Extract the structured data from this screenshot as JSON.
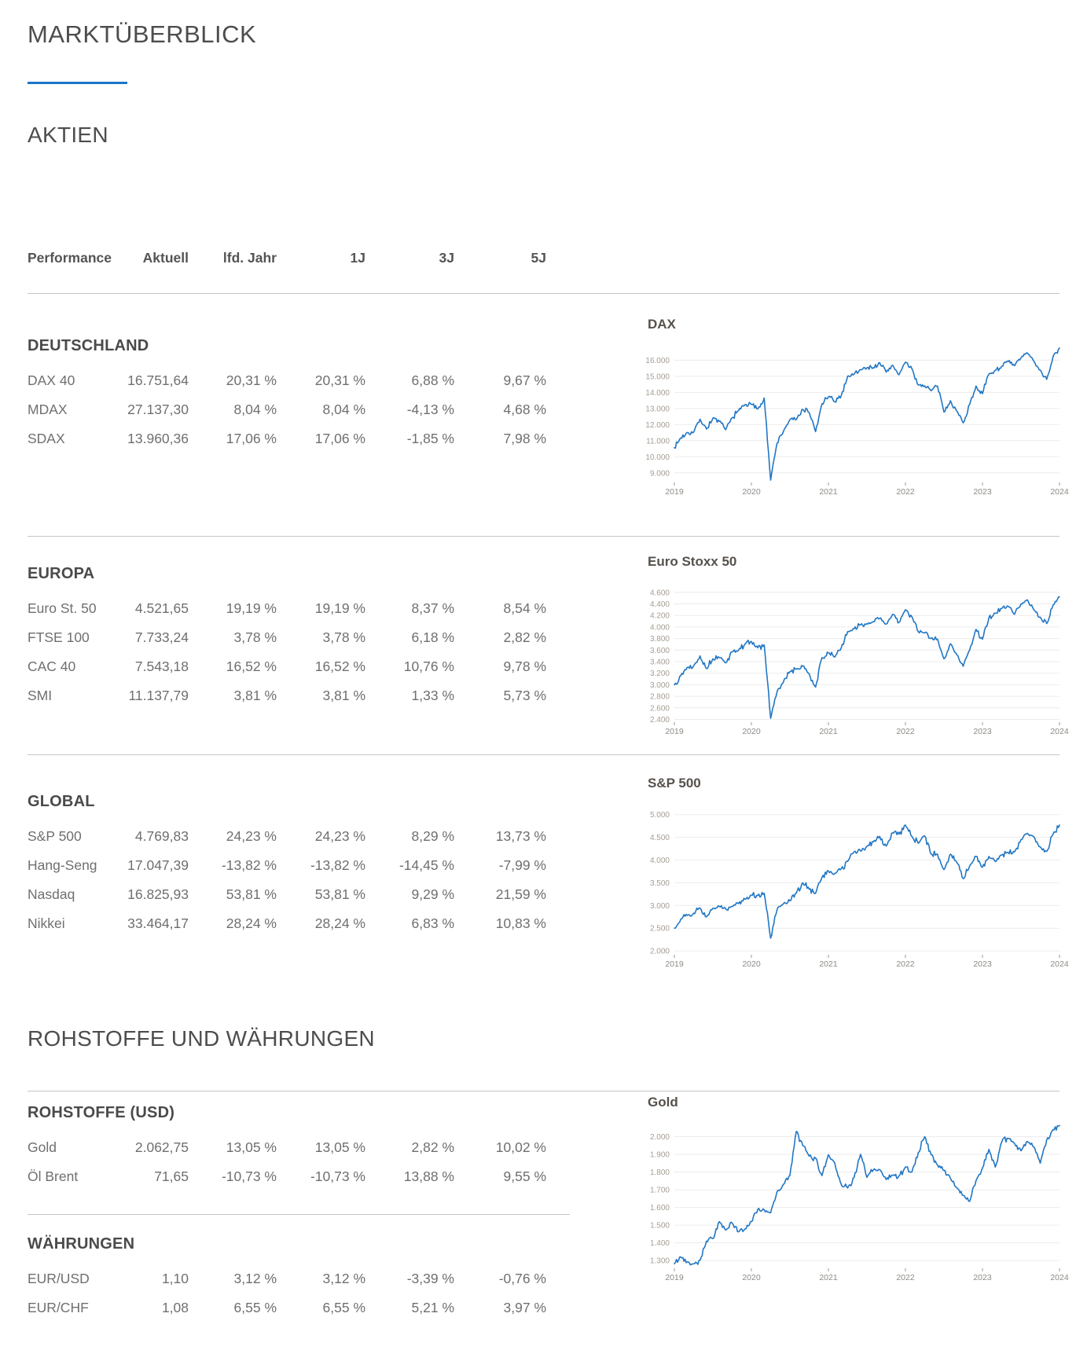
{
  "page": {
    "title": "MARKTÜBERBLICK",
    "section_aktien": "AKTIEN",
    "section_rohstoffe": "ROHSTOFFE UND WÄHRUNGEN"
  },
  "colors": {
    "accent_blue": "#1b76c9",
    "chart_line_blue": "#2176c4",
    "separator_gray": "#c6c6c6",
    "grid_gray": "#ececec",
    "heading_gray": "#4d4d4f",
    "table_text_gray": "#6f6f72"
  },
  "table": {
    "headers": [
      "Performance",
      "Aktuell",
      "lfd. Jahr",
      "1J",
      "3J",
      "5J"
    ],
    "groups": [
      {
        "name": "DEUTSCHLAND",
        "rows": [
          [
            "DAX 40",
            "16.751,64",
            "20,31 %",
            "20,31 %",
            "6,88 %",
            "9,67 %"
          ],
          [
            "MDAX",
            "27.137,30",
            "8,04 %",
            "8,04 %",
            "-4,13 %",
            "4,68 %"
          ],
          [
            "SDAX",
            "13.960,36",
            "17,06 %",
            "17,06 %",
            "-1,85 %",
            "7,98 %"
          ]
        ]
      },
      {
        "name": "EUROPA",
        "rows": [
          [
            "Euro St. 50",
            "4.521,65",
            "19,19 %",
            "19,19 %",
            "8,37 %",
            "8,54 %"
          ],
          [
            "FTSE 100",
            "7.733,24",
            "3,78 %",
            "3,78 %",
            "6,18 %",
            "2,82 %"
          ],
          [
            "CAC 40",
            "7.543,18",
            "16,52 %",
            "16,52 %",
            "10,76 %",
            "9,78 %"
          ],
          [
            "SMI",
            "11.137,79",
            "3,81 %",
            "3,81 %",
            "1,33 %",
            "5,73 %"
          ]
        ]
      },
      {
        "name": "GLOBAL",
        "rows": [
          [
            "S&P 500",
            "4.769,83",
            "24,23 %",
            "24,23 %",
            "8,29 %",
            "13,73 %"
          ],
          [
            "Hang-Seng",
            "17.047,39",
            "-13,82 %",
            "-13,82 %",
            "-14,45 %",
            "-7,99 %"
          ],
          [
            "Nasdaq",
            "16.825,93",
            "53,81 %",
            "53,81 %",
            "9,29 %",
            "21,59 %"
          ],
          [
            "Nikkei",
            "33.464,17",
            "28,24 %",
            "28,24 %",
            "6,83 %",
            "10,83 %"
          ]
        ]
      },
      {
        "name": "ROHSTOFFE (USD)",
        "rows": [
          [
            "Gold",
            "2.062,75",
            "13,05 %",
            "13,05 %",
            "2,82 %",
            "10,02 %"
          ],
          [
            "Öl Brent",
            "71,65",
            "-10,73 %",
            "-10,73 %",
            "13,88 %",
            "9,55 %"
          ]
        ]
      },
      {
        "name": "WÄHRUNGEN",
        "rows": [
          [
            "EUR/USD",
            "1,10",
            "3,12 %",
            "3,12 %",
            "-3,39 %",
            "-0,76 %"
          ],
          [
            "EUR/CHF",
            "1,08",
            "6,55 %",
            "6,55 %",
            "5,21 %",
            "3,97 %"
          ]
        ]
      }
    ]
  },
  "chart_data": [
    {
      "type": "line",
      "title": "DAX",
      "name": "dax-chart",
      "xlabel": "",
      "ylabel": "",
      "grid": true,
      "legend": "none",
      "x_range": [
        2019,
        2024
      ],
      "x_ticks": [
        "2019",
        "2020",
        "2021",
        "2022",
        "2023",
        "2024"
      ],
      "y_range": [
        8500,
        16900
      ],
      "y_ticks": [
        {
          "v": 9000,
          "label": "9.000"
        },
        {
          "v": 10000,
          "label": "10.000"
        },
        {
          "v": 11000,
          "label": "11.000"
        },
        {
          "v": 12000,
          "label": "12.000"
        },
        {
          "v": 13000,
          "label": "13.000"
        },
        {
          "v": 14000,
          "label": "14.000"
        },
        {
          "v": 15000,
          "label": "15.000"
        },
        {
          "v": 16000,
          "label": "16.000"
        }
      ],
      "x_start": 2019,
      "x_step": 0.0833333,
      "line_color": "#2176c4",
      "values": [
        10560,
        11170,
        11510,
        11530,
        12340,
        11730,
        12400,
        12190,
        11680,
        12430,
        12870,
        13240,
        13250,
        12980,
        13650,
        8550,
        10860,
        11590,
        12310,
        12310,
        12950,
        12760,
        11560,
        13290,
        13720,
        13430,
        13790,
        15010,
        15140,
        15420,
        15530,
        15540,
        15840,
        15260,
        15690,
        15100,
        15880,
        15470,
        14460,
        14410,
        14100,
        14390,
        12780,
        13480,
        12840,
        12110,
        13250,
        14400,
        13920,
        15130,
        15370,
        15630,
        15920,
        15660,
        16150,
        16450,
        15950,
        15390,
        14810,
        16220,
        16752
      ]
    },
    {
      "type": "line",
      "title": "Euro Stoxx 50",
      "name": "euro-stoxx-50-chart",
      "xlabel": "",
      "ylabel": "",
      "grid": true,
      "legend": "none",
      "x_range": [
        2019,
        2024
      ],
      "x_ticks": [
        "2019",
        "2020",
        "2021",
        "2022",
        "2023",
        "2024"
      ],
      "y_range": [
        2380,
        4720
      ],
      "y_ticks": [
        {
          "v": 2400,
          "label": "2.400"
        },
        {
          "v": 2600,
          "label": "2.600"
        },
        {
          "v": 2800,
          "label": "2.800"
        },
        {
          "v": 3000,
          "label": "3.000"
        },
        {
          "v": 3200,
          "label": "3.200"
        },
        {
          "v": 3400,
          "label": "3.400"
        },
        {
          "v": 3600,
          "label": "3.600"
        },
        {
          "v": 3800,
          "label": "3.800"
        },
        {
          "v": 4000,
          "label": "4.000"
        },
        {
          "v": 4200,
          "label": "4.200"
        },
        {
          "v": 4400,
          "label": "4.400"
        },
        {
          "v": 4600,
          "label": "4.600"
        }
      ],
      "x_start": 2019,
      "x_step": 0.0833333,
      "line_color": "#2176c4",
      "values": [
        3000,
        3160,
        3300,
        3330,
        3500,
        3280,
        3450,
        3470,
        3380,
        3570,
        3600,
        3700,
        3750,
        3640,
        3690,
        2420,
        2880,
        3050,
        3230,
        3270,
        3320,
        3190,
        2960,
        3470,
        3550,
        3480,
        3640,
        3920,
        3970,
        4040,
        4060,
        4090,
        4150,
        4050,
        4220,
        4080,
        4300,
        4180,
        3920,
        3900,
        3800,
        3790,
        3450,
        3710,
        3520,
        3320,
        3600,
        3960,
        3790,
        4160,
        4240,
        4320,
        4360,
        4220,
        4400,
        4470,
        4300,
        4170,
        4060,
        4380,
        4522
      ]
    },
    {
      "type": "line",
      "title": "S&P 500",
      "name": "sp500-chart",
      "xlabel": "",
      "ylabel": "",
      "grid": true,
      "legend": "none",
      "x_range": [
        2019,
        2024
      ],
      "x_ticks": [
        "2019",
        "2020",
        "2021",
        "2022",
        "2023",
        "2024"
      ],
      "y_range": [
        1950,
        5150
      ],
      "y_ticks": [
        {
          "v": 2000,
          "label": "2.000"
        },
        {
          "v": 2500,
          "label": "2.500"
        },
        {
          "v": 3000,
          "label": "3.000"
        },
        {
          "v": 3500,
          "label": "3.500"
        },
        {
          "v": 4000,
          "label": "4.000"
        },
        {
          "v": 4500,
          "label": "4.500"
        },
        {
          "v": 5000,
          "label": "5.000"
        }
      ],
      "x_start": 2019,
      "x_step": 0.0833333,
      "line_color": "#2176c4",
      "values": [
        2500,
        2700,
        2780,
        2830,
        2940,
        2750,
        2940,
        2980,
        2920,
        2980,
        3040,
        3140,
        3230,
        3220,
        3270,
        2280,
        2910,
        3040,
        3100,
        3270,
        3500,
        3360,
        3270,
        3620,
        3760,
        3710,
        3810,
        3970,
        4180,
        4200,
        4300,
        4400,
        4520,
        4310,
        4600,
        4570,
        4770,
        4520,
        4370,
        4530,
        4130,
        4130,
        3790,
        4130,
        3950,
        3590,
        3870,
        4080,
        3840,
        4080,
        3970,
        4110,
        4170,
        4180,
        4450,
        4590,
        4510,
        4290,
        4190,
        4570,
        4770
      ]
    },
    {
      "type": "line",
      "title": "Gold",
      "name": "gold-chart",
      "xlabel": "",
      "ylabel": "",
      "grid": true,
      "legend": "none",
      "x_range": [
        2019,
        2024
      ],
      "x_ticks": [
        "2019",
        "2020",
        "2021",
        "2022",
        "2023",
        "2024"
      ],
      "y_range": [
        1265,
        2100
      ],
      "y_ticks": [
        {
          "v": 1300,
          "label": "1.300"
        },
        {
          "v": 1400,
          "label": "1.400"
        },
        {
          "v": 1500,
          "label": "1.500"
        },
        {
          "v": 1600,
          "label": "1.600"
        },
        {
          "v": 1700,
          "label": "1.700"
        },
        {
          "v": 1800,
          "label": "1.800"
        },
        {
          "v": 1900,
          "label": "1.900"
        },
        {
          "v": 2000,
          "label": "2.000"
        }
      ],
      "x_start": 2019,
      "x_step": 0.0833333,
      "line_color": "#2176c4",
      "values": [
        1282,
        1320,
        1292,
        1282,
        1302,
        1410,
        1424,
        1520,
        1472,
        1512,
        1462,
        1478,
        1520,
        1590,
        1586,
        1570,
        1690,
        1730,
        1780,
        2030,
        1950,
        1890,
        1878,
        1780,
        1898,
        1850,
        1730,
        1710,
        1770,
        1900,
        1770,
        1812,
        1812,
        1758,
        1782,
        1778,
        1828,
        1800,
        1910,
        2000,
        1898,
        1840,
        1808,
        1766,
        1712,
        1668,
        1634,
        1752,
        1824,
        1928,
        1828,
        1970,
        1990,
        1962,
        1920,
        1972,
        1942,
        1850,
        1982,
        2040,
        2063
      ]
    }
  ]
}
